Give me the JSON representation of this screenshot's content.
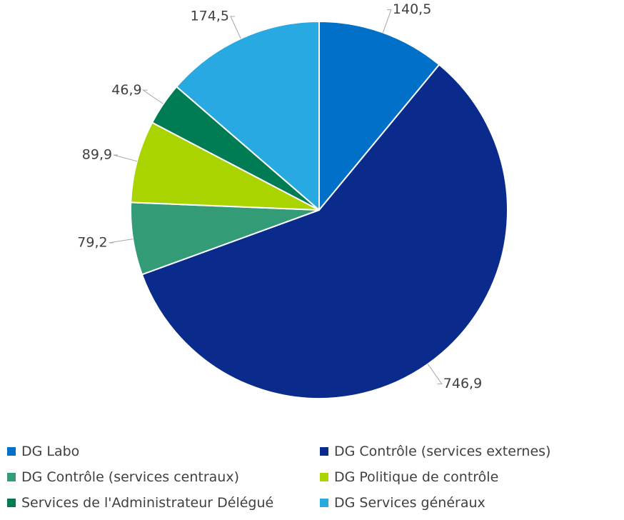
{
  "chart_data": {
    "type": "pie",
    "title": "",
    "categories": [
      "DG Labo",
      "DG Contrôle (services externes)",
      "DG Contrôle (services centraux)",
      "DG Politique de contrôle",
      "Services de l'Administrateur Délégué",
      "DG Services généraux"
    ],
    "values": [
      140.5,
      746.9,
      79.2,
      89.9,
      46.9,
      174.5
    ],
    "data_labels": [
      "140,5",
      "746,9",
      "79,2",
      "89,9",
      "46,9",
      "174,5"
    ],
    "colors": [
      "#0070C8",
      "#0A2B8C",
      "#339B76",
      "#AAD400",
      "#007C55",
      "#29A9E1"
    ],
    "start_angle": "12 o'clock",
    "direction": "clockwise",
    "legend_position": "bottom",
    "decimal_separator": ","
  }
}
